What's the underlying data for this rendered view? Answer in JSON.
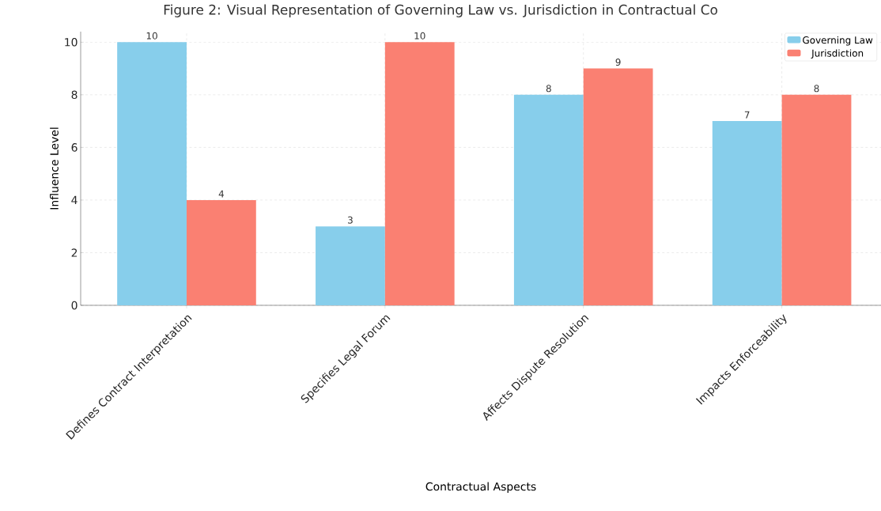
{
  "chart_data": {
    "type": "bar",
    "title": "Figure 2: Visual Representation of Governing Law vs. Jurisdiction in Contractual Co",
    "xlabel": "Contractual Aspects",
    "ylabel": "Influence Level",
    "categories": [
      "Defines Contract Interpretation",
      "Specifies Legal Forum",
      "Affects Dispute Resolution",
      "Impacts Enforceability"
    ],
    "series": [
      {
        "name": "Governing Law",
        "color": "#87ceeb",
        "values": [
          10,
          3,
          8,
          7
        ]
      },
      {
        "name": "Jurisdiction",
        "color": "#fa8072",
        "values": [
          4,
          10,
          9,
          8
        ]
      }
    ],
    "ylim": [
      0,
      10.4
    ],
    "yticks": [
      0,
      2,
      4,
      6,
      8,
      10
    ],
    "grid": true,
    "legend": "top right",
    "data_labels": true
  }
}
